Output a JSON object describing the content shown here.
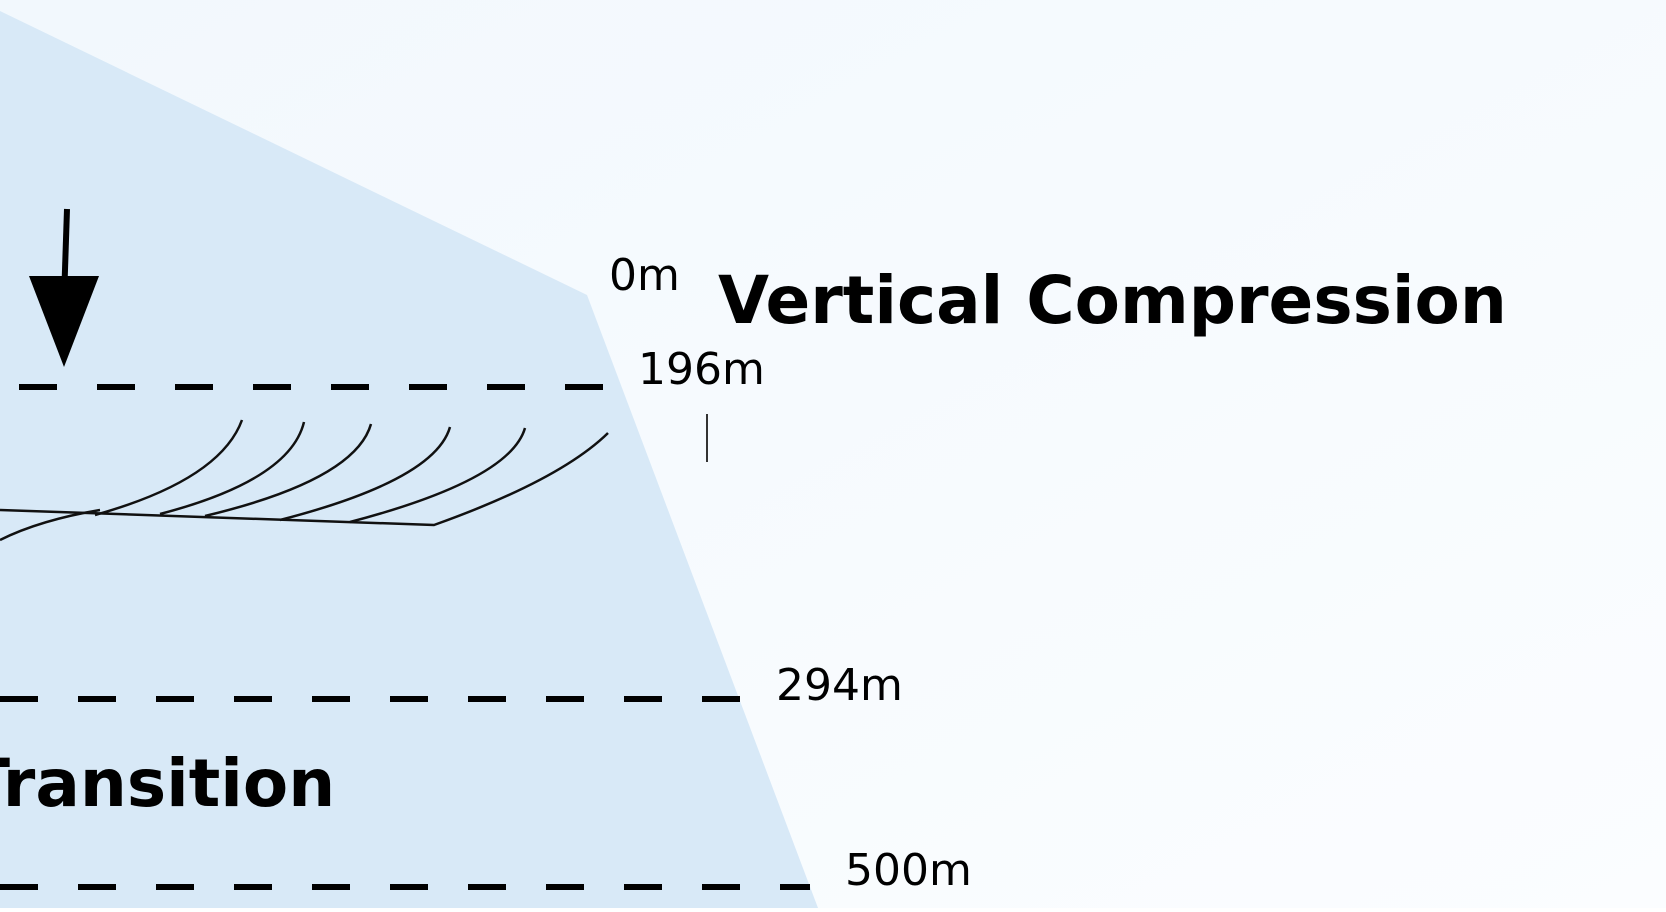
{
  "labels": {
    "depth_0": "0m",
    "depth_196": "196m",
    "depth_294": "294m",
    "depth_500": "500m"
  },
  "zones": {
    "upper": "Vertical Compression",
    "lower": "Transition"
  }
}
